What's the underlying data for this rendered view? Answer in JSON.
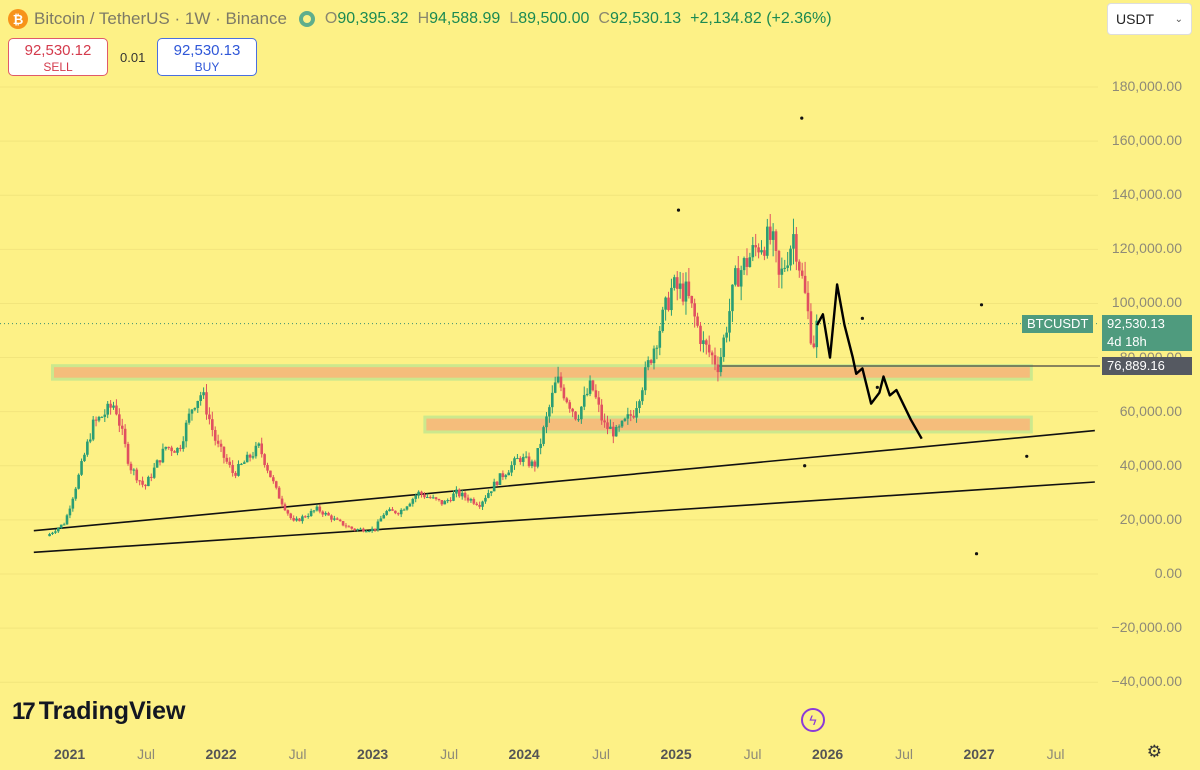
{
  "header": {
    "symbol": "Bitcoin / TetherUS",
    "interval": "1W",
    "exchange": "Binance",
    "coin_icon": "bitcoin-icon",
    "ohlc": {
      "open_label": "O",
      "open": "90,395.32",
      "high_label": "H",
      "high": "94,588.99",
      "low_label": "L",
      "low": "89,500.00",
      "close_label": "C",
      "close": "92,530.13",
      "change": "+2,134.82 (+2.36%)"
    }
  },
  "trade": {
    "sell_price": "92,530.12",
    "sell_label": "SELL",
    "spread": "0.01",
    "buy_price": "92,530.13",
    "buy_label": "BUY"
  },
  "currency": {
    "value": "USDT",
    "icon": "chevron-down-icon"
  },
  "brand": {
    "name": "TradingView",
    "mark": "17"
  },
  "colors": {
    "background": "#fdf186",
    "up": "#2a9d74",
    "down": "#e05060",
    "zone": "#f5b87a",
    "tag": "#4f9b7e"
  },
  "chart_data": {
    "type": "candlestick",
    "title": "Bitcoin / TetherUS · 1W · Binance",
    "ylim": [
      -45000,
      200000
    ],
    "y_ticks": [
      180000,
      160000,
      140000,
      120000,
      100000,
      80000,
      60000,
      40000,
      20000,
      0,
      -20000,
      -40000
    ],
    "y_tick_labels": [
      "180,000.00",
      "160,000.00",
      "140,000.00",
      "120,000.00",
      "100,000.00",
      "80,000.00",
      "60,000.00",
      "40,000.00",
      "20,000.00",
      "0.00",
      "−20,000.00",
      "−40,000.00"
    ],
    "x_ticks": [
      {
        "label": "2021",
        "year": true
      },
      {
        "label": "Jul",
        "year": false
      },
      {
        "label": "2022",
        "year": true
      },
      {
        "label": "Jul",
        "year": false
      },
      {
        "label": "2023",
        "year": true
      },
      {
        "label": "Jul",
        "year": false
      },
      {
        "label": "2024",
        "year": true
      },
      {
        "label": "Jul",
        "year": false
      },
      {
        "label": "2025",
        "year": true
      },
      {
        "label": "Jul",
        "year": false
      },
      {
        "label": "2026",
        "year": true
      },
      {
        "label": "Jul",
        "year": false
      },
      {
        "label": "2027",
        "year": true
      },
      {
        "label": "Jul",
        "year": false
      }
    ],
    "price_path": [
      [
        "2020-11-01",
        14000
      ],
      [
        "2020-12-15",
        19000
      ],
      [
        "2021-01-15",
        35000
      ],
      [
        "2021-02-20",
        55000
      ],
      [
        "2021-04-14",
        63000
      ],
      [
        "2021-05-20",
        40000
      ],
      [
        "2021-06-25",
        32000
      ],
      [
        "2021-08-15",
        47000
      ],
      [
        "2021-09-15",
        46000
      ],
      [
        "2021-10-20",
        63000
      ],
      [
        "2021-11-10",
        67000
      ],
      [
        "2021-12-15",
        48000
      ],
      [
        "2022-01-25",
        37000
      ],
      [
        "2022-03-28",
        47000
      ],
      [
        "2022-05-10",
        30000
      ],
      [
        "2022-06-18",
        19000
      ],
      [
        "2022-08-15",
        24000
      ],
      [
        "2022-10-01",
        19500
      ],
      [
        "2022-11-10",
        16500
      ],
      [
        "2022-12-31",
        16500
      ],
      [
        "2023-01-25",
        23000
      ],
      [
        "2023-03-01",
        23000
      ],
      [
        "2023-04-15",
        30000
      ],
      [
        "2023-06-15",
        26000
      ],
      [
        "2023-07-15",
        30000
      ],
      [
        "2023-09-10",
        26000
      ],
      [
        "2023-10-25",
        35000
      ],
      [
        "2023-12-15",
        43000
      ],
      [
        "2024-01-20",
        40000
      ],
      [
        "2024-03-14",
        72000
      ],
      [
        "2024-05-01",
        58000
      ],
      [
        "2024-06-05",
        70000
      ],
      [
        "2024-07-05",
        55000
      ],
      [
        "2024-08-05",
        52000
      ],
      [
        "2024-09-15",
        60000
      ],
      [
        "2024-11-15",
        90000
      ],
      [
        "2024-12-17",
        106000
      ],
      [
        "2025-01-20",
        104000
      ],
      [
        "2025-03-01",
        85000
      ],
      [
        "2025-04-08",
        77000
      ],
      [
        "2025-05-20",
        110000
      ],
      [
        "2025-07-14",
        122000
      ],
      [
        "2025-08-14",
        124000
      ],
      [
        "2025-09-01",
        108000
      ],
      [
        "2025-10-06",
        126000
      ],
      [
        "2025-11-05",
        100000
      ],
      [
        "2025-11-21",
        84000
      ],
      [
        "2025-12-01",
        92530
      ]
    ],
    "last_price": 92530.13,
    "last_label": "BTCUSDT",
    "last_price_text": "92,530.13",
    "countdown": "4d 18h",
    "horizontal_line": {
      "price": 76889.16,
      "label": "76,889.16",
      "from": "2025-04-08",
      "to": "2027-10-01"
    },
    "zones": [
      {
        "from": "2020-11-15",
        "to": "2027-05-01",
        "low": 72000,
        "high": 77000
      },
      {
        "from": "2023-05-01",
        "to": "2027-05-01",
        "low": 52500,
        "high": 58000
      }
    ],
    "trend_lines": [
      {
        "from": [
          "2020-10-01",
          16000
        ],
        "to": [
          "2027-10-01",
          53000
        ]
      },
      {
        "from": [
          "2020-10-01",
          8000
        ],
        "to": [
          "2027-10-01",
          34000
        ]
      }
    ],
    "projection_path": [
      [
        "2025-12-01",
        92000
      ],
      [
        "2025-12-15",
        96000
      ],
      [
        "2026-01-01",
        80000
      ],
      [
        "2026-01-18",
        107000
      ],
      [
        "2026-02-05",
        92000
      ],
      [
        "2026-02-25",
        80000
      ],
      [
        "2026-03-05",
        74000
      ],
      [
        "2026-03-20",
        76000
      ],
      [
        "2026-04-10",
        63000
      ],
      [
        "2026-04-30",
        67000
      ],
      [
        "2026-05-10",
        73000
      ],
      [
        "2026-05-25",
        66000
      ],
      [
        "2026-06-10",
        68000
      ],
      [
        "2026-07-15",
        57000
      ],
      [
        "2026-08-10",
        50000
      ]
    ],
    "dots": [
      [
        "2025-10-25",
        168500
      ],
      [
        "2025-01-01",
        134500
      ],
      [
        "2027-01-01",
        99500
      ],
      [
        "2026-03-20",
        94500
      ],
      [
        "2026-04-25",
        69000
      ],
      [
        "2025-11-01",
        40000
      ],
      [
        "2027-04-20",
        43500
      ],
      [
        "2026-12-20",
        7500
      ]
    ]
  }
}
